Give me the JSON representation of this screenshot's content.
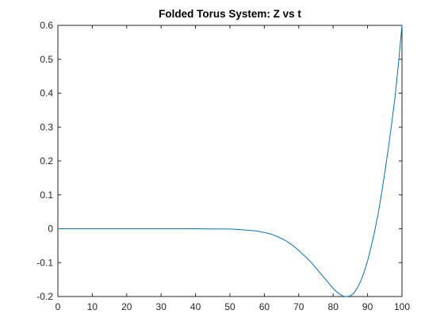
{
  "chart_data": {
    "type": "line",
    "title": "Folded Torus System: Z vs t",
    "xlabel": "",
    "ylabel": "",
    "xlim": [
      0,
      100
    ],
    "ylim": [
      -0.2,
      0.6
    ],
    "x_ticks": [
      0,
      10,
      20,
      30,
      40,
      50,
      60,
      70,
      80,
      90,
      100
    ],
    "y_ticks": [
      -0.2,
      -0.1,
      0,
      0.1,
      0.2,
      0.3,
      0.4,
      0.5,
      0.6
    ],
    "x_tick_labels": [
      "0",
      "10",
      "20",
      "30",
      "40",
      "50",
      "60",
      "70",
      "80",
      "90",
      "100"
    ],
    "y_tick_labels": [
      "-0.2",
      "-0.1",
      "0",
      "0.1",
      "0.2",
      "0.3",
      "0.4",
      "0.5",
      "0.6"
    ],
    "grid": false,
    "legend": "none",
    "series": [
      {
        "color": "#0072bd",
        "x": [
          0,
          10,
          20,
          30,
          40,
          45,
          50,
          55,
          58,
          60,
          62,
          64,
          66,
          68,
          70,
          72,
          74,
          76,
          78,
          80,
          81,
          82,
          83,
          84,
          85,
          86,
          87,
          88,
          89,
          90,
          91,
          92,
          93,
          94,
          95,
          96,
          97,
          98,
          99,
          100
        ],
        "y": [
          0,
          0,
          0,
          0,
          0,
          -0.0005,
          -0.001,
          -0.004,
          -0.007,
          -0.011,
          -0.016,
          -0.024,
          -0.034,
          -0.047,
          -0.064,
          -0.083,
          -0.104,
          -0.128,
          -0.152,
          -0.176,
          -0.186,
          -0.194,
          -0.199,
          -0.2,
          -0.198,
          -0.19,
          -0.175,
          -0.155,
          -0.128,
          -0.095,
          -0.055,
          -0.01,
          0.04,
          0.1,
          0.165,
          0.235,
          0.31,
          0.39,
          0.49,
          0.6
        ]
      }
    ]
  }
}
